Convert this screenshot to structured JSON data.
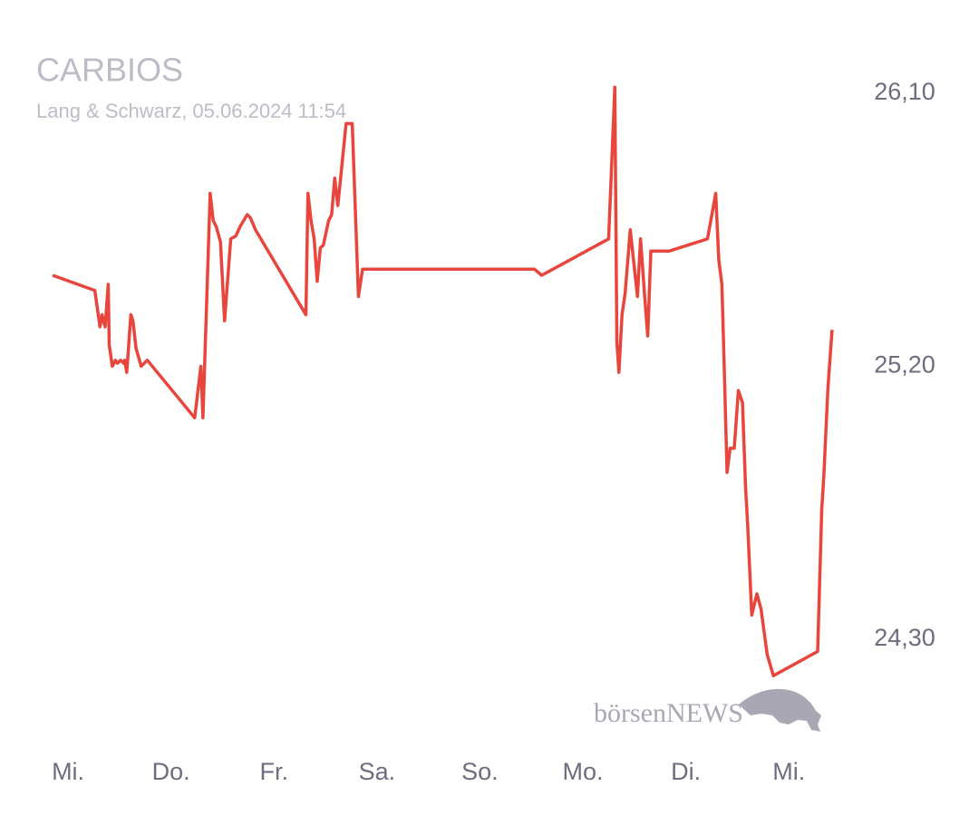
{
  "chart_data": {
    "type": "line",
    "title": "CARBIOS",
    "subtitle": "Lang & Schwarz, 05.06.2024 11:54",
    "watermark": "börsenNEWS",
    "xlim": [
      -0.3,
      7.5
    ],
    "xticks": [
      {
        "value": 0,
        "label": "Mi."
      },
      {
        "value": 1,
        "label": "Do."
      },
      {
        "value": 2,
        "label": "Fr."
      },
      {
        "value": 3,
        "label": "Sa."
      },
      {
        "value": 4,
        "label": "So."
      },
      {
        "value": 5,
        "label": "Mo."
      },
      {
        "value": 6,
        "label": "Di."
      },
      {
        "value": 7,
        "label": "Mi."
      }
    ],
    "ylim": [
      24.0,
      26.25
    ],
    "yticks": [
      {
        "value": 26.1,
        "label": "26,10"
      },
      {
        "value": 25.2,
        "label": "25,20"
      },
      {
        "value": 24.3,
        "label": "24,30"
      }
    ],
    "grid": false,
    "series": [
      {
        "name": "CARBIOS",
        "color": "#e8453c",
        "x": [
          -0.15,
          0.26,
          0.31,
          0.33,
          0.36,
          0.39,
          0.4,
          0.43,
          0.46,
          0.48,
          0.51,
          0.54,
          0.55,
          0.57,
          0.61,
          0.63,
          0.66,
          0.71,
          0.77,
          1.23,
          1.29,
          1.31,
          1.38,
          1.41,
          1.44,
          1.48,
          1.52,
          1.58,
          1.63,
          1.67,
          1.74,
          1.77,
          1.82,
          2.31,
          2.33,
          2.36,
          2.39,
          2.42,
          2.45,
          2.48,
          2.53,
          2.56,
          2.59,
          2.62,
          2.65,
          2.7,
          2.76,
          2.82,
          2.86,
          4.53,
          4.6,
          5.25,
          5.31,
          5.33,
          5.35,
          5.38,
          5.41,
          5.46,
          5.53,
          5.56,
          5.6,
          5.63,
          5.66,
          5.7,
          5.84,
          6.21,
          6.29,
          6.32,
          6.35,
          6.37,
          6.4,
          6.43,
          6.47,
          6.51,
          6.55,
          6.58,
          6.6,
          6.64,
          6.69,
          6.73,
          6.79,
          6.85,
          7.28,
          7.32,
          7.34,
          7.38,
          7.42
        ],
        "values": [
          25.5,
          25.45,
          25.33,
          25.37,
          25.33,
          25.47,
          25.27,
          25.2,
          25.22,
          25.21,
          25.22,
          25.21,
          25.22,
          25.18,
          25.37,
          25.35,
          25.26,
          25.2,
          25.22,
          25.03,
          25.2,
          25.03,
          25.77,
          25.68,
          25.66,
          25.61,
          25.35,
          25.62,
          25.63,
          25.66,
          25.7,
          25.69,
          25.65,
          25.37,
          25.77,
          25.68,
          25.62,
          25.48,
          25.59,
          25.6,
          25.68,
          25.7,
          25.82,
          25.73,
          25.83,
          26.0,
          26.0,
          25.43,
          25.52,
          25.52,
          25.5,
          25.62,
          26.12,
          25.28,
          25.18,
          25.37,
          25.44,
          25.65,
          25.43,
          25.62,
          25.43,
          25.3,
          25.58,
          25.58,
          25.58,
          25.62,
          25.77,
          25.55,
          25.47,
          25.23,
          24.85,
          24.93,
          24.93,
          25.12,
          25.08,
          24.8,
          24.68,
          24.38,
          24.45,
          24.4,
          24.25,
          24.18,
          24.26,
          24.73,
          24.84,
          25.13,
          25.32
        ]
      }
    ]
  }
}
